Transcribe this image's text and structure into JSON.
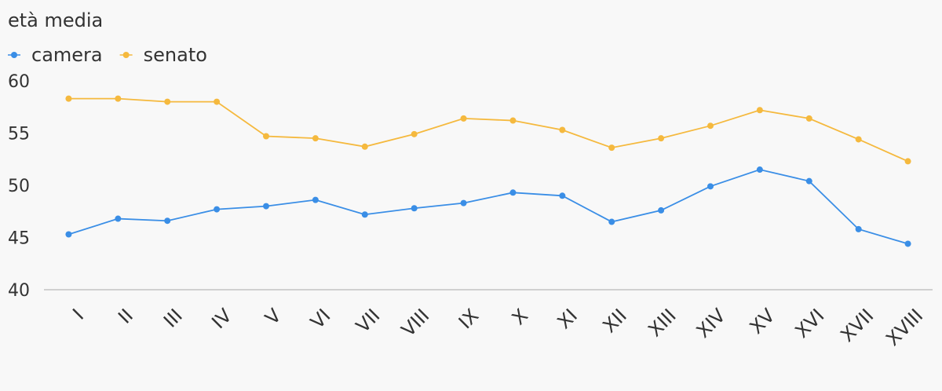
{
  "chart_data": {
    "type": "line",
    "title": "età media",
    "categories": [
      "I",
      "II",
      "III",
      "IV",
      "V",
      "VI",
      "VII",
      "VIII",
      "IX",
      "X",
      "XI",
      "XII",
      "XIII",
      "XIV",
      "XV",
      "XVI",
      "XVII",
      "XVIII"
    ],
    "series": [
      {
        "name": "camera",
        "color": "#3a8ee6",
        "values": [
          45.3,
          46.8,
          46.6,
          47.7,
          48.0,
          48.6,
          47.2,
          47.8,
          48.3,
          49.3,
          49.0,
          46.5,
          47.6,
          49.9,
          51.5,
          50.4,
          45.8,
          44.4
        ]
      },
      {
        "name": "senato",
        "color": "#f5b93e",
        "values": [
          58.3,
          58.3,
          58.0,
          58.0,
          54.7,
          54.5,
          53.7,
          54.9,
          56.4,
          56.2,
          55.3,
          53.6,
          54.5,
          55.7,
          57.2,
          56.4,
          54.4,
          52.3
        ]
      }
    ],
    "ylim": [
      40,
      60
    ],
    "yticks": [
      40,
      45,
      50,
      55,
      60
    ],
    "legend": "top-left"
  }
}
